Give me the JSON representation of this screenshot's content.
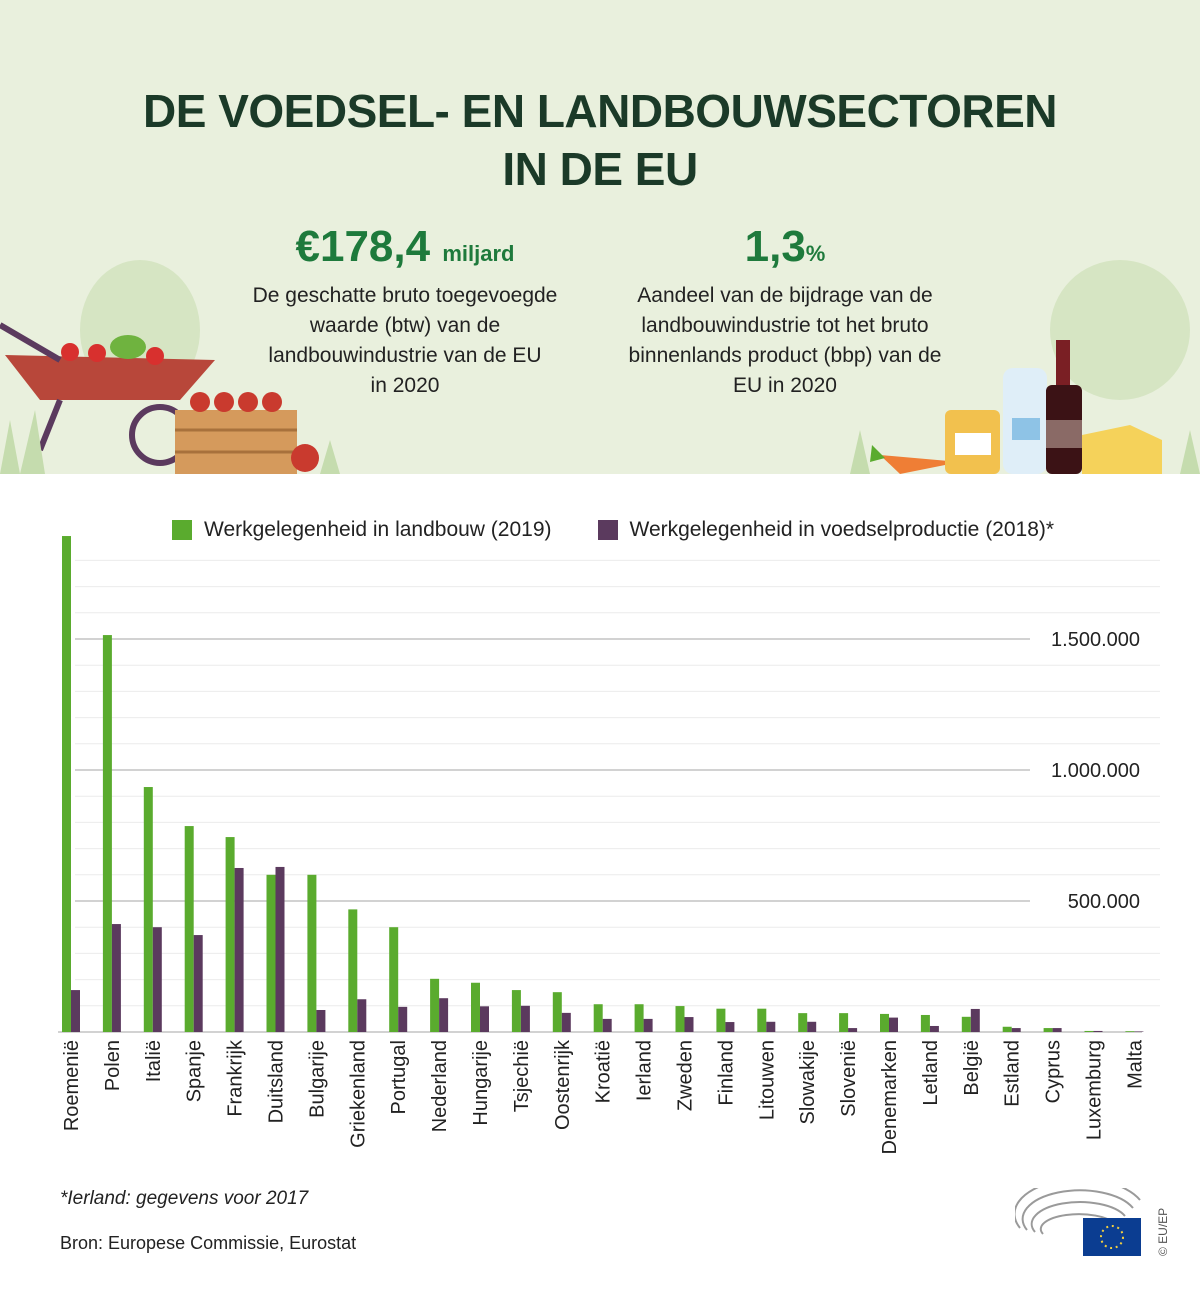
{
  "header": {
    "title_line1": "DE VOEDSEL- EN LANDBOUWSECTOREN",
    "title_line2": "IN DE EU",
    "stat1": {
      "value": "€178,4",
      "unit": "miljard",
      "desc": [
        "De geschatte bruto toegevoegde",
        "waarde (btw) van de",
        "landbouwindustrie van de EU",
        "in 2020"
      ]
    },
    "stat2": {
      "value": "1,3",
      "unit": "%",
      "desc": [
        "Aandeel van de bijdrage van de",
        "landbouwindustrie tot het bruto",
        "binnenlands product (bbp) van de",
        "EU in 2020"
      ]
    }
  },
  "chart_data": {
    "type": "bar",
    "categories": [
      "Roemenië",
      "Polen",
      "Italië",
      "Spanje",
      "Frankrijk",
      "Duitsland",
      "Bulgarije",
      "Griekenland",
      "Portugal",
      "Nederland",
      "Hungarije",
      "Tsjechië",
      "Oostenrijk",
      "Kroatië",
      "Ierland",
      "Zweden",
      "Finland",
      "Litouwen",
      "Slowakije",
      "Slovenië",
      "Denemarken",
      "Letland",
      "België",
      "Estland",
      "Cyprus",
      "Luxemburg",
      "Malta"
    ],
    "series": [
      {
        "name": "Werkgelegenheid in landbouw (2019)",
        "color": "#5aab2e",
        "values": [
          1893000,
          1515000,
          935000,
          786000,
          744000,
          600000,
          600000,
          468000,
          400000,
          203000,
          188000,
          160000,
          152000,
          106000,
          106000,
          99000,
          89000,
          89000,
          72000,
          72000,
          69000,
          65000,
          58000,
          20000,
          15000,
          4000,
          3000
        ]
      },
      {
        "name": "Werkgelegenheid in voedselproductie (2018)*",
        "color": "#5b3a5e",
        "values": [
          160000,
          412000,
          400000,
          370000,
          626000,
          630000,
          84000,
          125000,
          96000,
          129000,
          98000,
          100000,
          73000,
          50000,
          50000,
          57000,
          38000,
          39000,
          39000,
          15000,
          55000,
          23000,
          88000,
          15000,
          15000,
          4000,
          2000
        ]
      }
    ],
    "yticks": [
      {
        "value": 500000,
        "label": "500.000"
      },
      {
        "value": 1000000,
        "label": "1.000.000"
      },
      {
        "value": 1500000,
        "label": "1.500.000"
      }
    ],
    "ylim": [
      0,
      1800000
    ],
    "minor_grid_step": 100000,
    "grid": true,
    "legend": "top"
  },
  "footer": {
    "footnote": "*Ierland: gegevens voor 2017",
    "source": "Bron: Europese Commissie, Eurostat",
    "copyright": "© EU/EP"
  }
}
